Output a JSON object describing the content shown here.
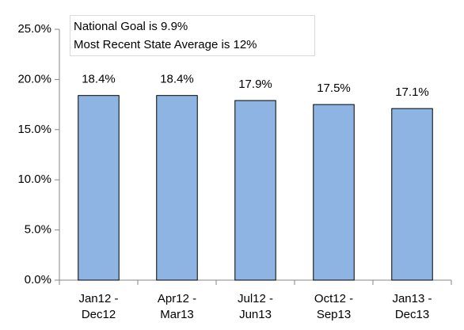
{
  "chart_data": {
    "type": "bar",
    "annotations": [
      "National Goal is 9.9%",
      "Most Recent State Average is 12%"
    ],
    "categories": [
      "Jan12 - Dec12",
      "Apr12 - Mar13",
      "Jul12 - Jun13",
      "Oct12 - Sep13",
      "Jan13 - Dec13"
    ],
    "values": [
      18.4,
      18.4,
      17.9,
      17.5,
      17.1
    ],
    "value_labels": [
      "18.4%",
      "18.4%",
      "17.9%",
      "17.5%",
      "17.1%"
    ],
    "color": "#8eb4e3",
    "ylim": [
      0,
      25
    ],
    "yticks": [
      {
        "value": 0,
        "label": "0.0%"
      },
      {
        "value": 5,
        "label": "5.0%"
      },
      {
        "value": 10,
        "label": "10.0%"
      },
      {
        "value": 15,
        "label": "15.0%"
      },
      {
        "value": 20,
        "label": "20.0%"
      },
      {
        "value": 25,
        "label": "25.0%"
      }
    ],
    "grid": false
  }
}
